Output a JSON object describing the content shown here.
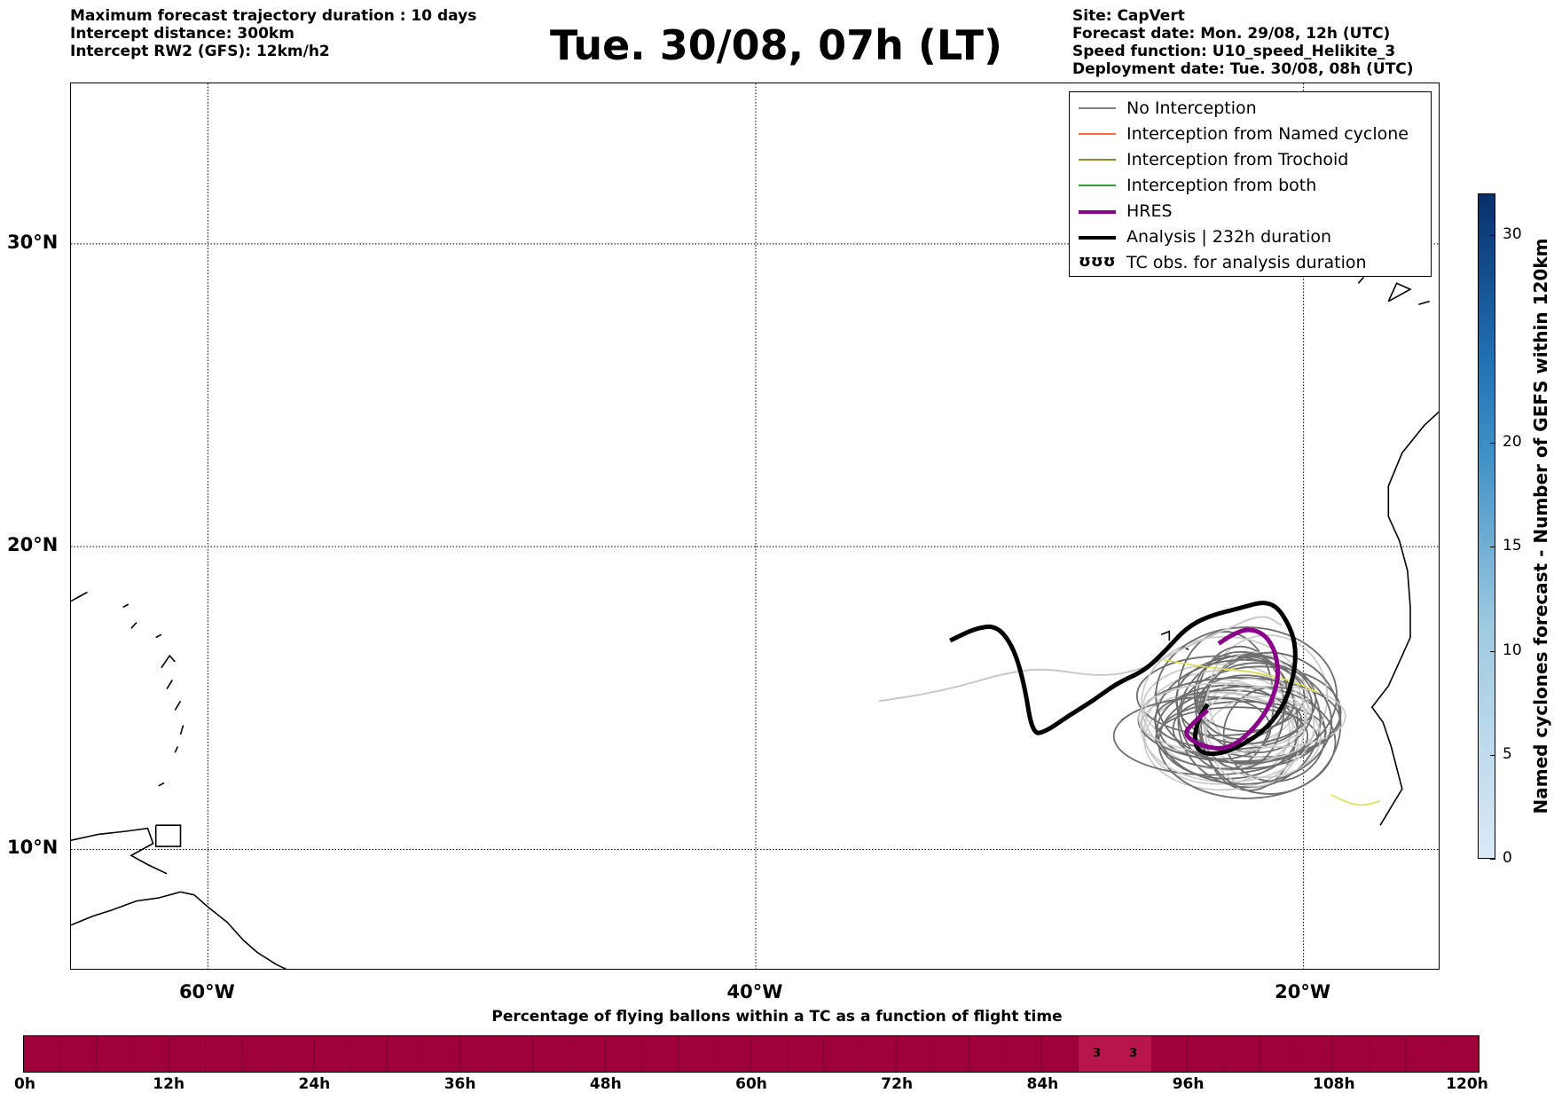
{
  "header_left": [
    "Maximum forecast trajectory duration : 10 days",
    "Intercept distance: 300km",
    "Intercept RW2 (GFS):  12km/h2"
  ],
  "title": "Tue. 30/08, 07h (LT)",
  "header_right": [
    "Site: CapVert",
    "Forecast date: Mon. 29/08, 12h (UTC)",
    "Speed function: U10_speed_Helikite_3",
    "Deployment date: Tue. 30/08, 08h (UTC)"
  ],
  "map": {
    "lon_range": [
      -65,
      15
    ],
    "lat_range": [
      5,
      35
    ],
    "lat_labels": [
      {
        "lat": 30,
        "label": "30°N"
      },
      {
        "lat": 20,
        "label": "20°N"
      },
      {
        "lat": 10,
        "label": "10°N"
      }
    ],
    "lon_labels": [
      {
        "lon": -60,
        "label": "60°W"
      },
      {
        "lon": -40,
        "label": "40°W"
      },
      {
        "lon": -20,
        "label": "20°W"
      }
    ]
  },
  "legend": [
    {
      "label": "No Interception",
      "color": "#808080",
      "style": "line"
    },
    {
      "label": "Interception from Named cyclone",
      "color": "#ff6a3d",
      "style": "line"
    },
    {
      "label": "Interception from Trochoid",
      "color": "#8b8b2b",
      "style": "line"
    },
    {
      "label": "Interception from both",
      "color": "#2ca02c",
      "style": "line"
    },
    {
      "label": "HRES",
      "color": "#8b008b",
      "style": "thick"
    },
    {
      "label": "Analysis | 232h duration",
      "color": "#000000",
      "style": "thick"
    },
    {
      "label": "TC obs. for analysis duration",
      "color": "#000000",
      "style": "symbol",
      "symbol": "ʊʊʊ"
    }
  ],
  "colorbar": {
    "label": "Named cyclones forecast - Number of GEFS within 120km",
    "min": 0,
    "max": 32,
    "ticks": [
      0,
      5,
      10,
      15,
      20,
      30
    ],
    "color_low": "#dbe9f6",
    "color_high": "#08306b"
  },
  "timeline": {
    "title": "Percentage of flying ballons within a TC as a function of flight time",
    "ticks": [
      "0h",
      "12h",
      "24h",
      "36h",
      "48h",
      "60h",
      "72h",
      "84h",
      "96h",
      "108h",
      "120h"
    ],
    "base_color": "#a0003a",
    "highlights": [
      {
        "hour_start": 87,
        "hour_end": 90,
        "label": "3"
      },
      {
        "hour_start": 90,
        "hour_end": 93,
        "label": "3"
      }
    ]
  },
  "chart_data": {
    "type": "map",
    "title": "Tue. 30/08, 07h (LT)",
    "analysis_track": [
      [
        -32.9,
        16.9
      ],
      [
        -32.0,
        17.3
      ],
      [
        -31.2,
        17.4
      ],
      [
        -30.6,
        16.7
      ],
      [
        -30.2,
        15.5
      ],
      [
        -29.9,
        13.8
      ],
      [
        -29.4,
        13.9
      ],
      [
        -28.6,
        14.4
      ],
      [
        -27.7,
        14.9
      ],
      [
        -26.8,
        15.5
      ],
      [
        -25.8,
        15.9
      ],
      [
        -25.0,
        16.6
      ],
      [
        -24.3,
        17.3
      ],
      [
        -23.5,
        17.7
      ],
      [
        -22.2,
        18.0
      ],
      [
        -21.4,
        18.2
      ],
      [
        -20.8,
        17.9
      ],
      [
        -20.2,
        16.7
      ],
      [
        -20.5,
        15.1
      ],
      [
        -21.3,
        14.0
      ],
      [
        -22.5,
        13.3
      ],
      [
        -23.5,
        13.1
      ],
      [
        -24.0,
        13.4
      ],
      [
        -23.9,
        14.2
      ],
      [
        -23.5,
        14.8
      ]
    ],
    "hres_track": [
      [
        -23.1,
        16.8
      ],
      [
        -22.6,
        17.1
      ],
      [
        -22.0,
        17.3
      ],
      [
        -21.4,
        17.1
      ],
      [
        -21.0,
        16.5
      ],
      [
        -20.9,
        15.6
      ],
      [
        -21.3,
        14.6
      ],
      [
        -22.0,
        13.8
      ],
      [
        -22.8,
        13.3
      ],
      [
        -23.7,
        13.4
      ],
      [
        -24.4,
        13.8
      ],
      [
        -24.0,
        14.2
      ],
      [
        -23.5,
        14.6
      ]
    ],
    "light_track": [
      [
        -35.5,
        14.9
      ],
      [
        -34.0,
        15.1
      ],
      [
        -32.5,
        15.4
      ],
      [
        -31.0,
        15.8
      ],
      [
        -29.5,
        16.0
      ],
      [
        -27.5,
        15.7
      ],
      [
        -26.0,
        15.9
      ],
      [
        -24.5,
        16.6
      ],
      [
        -23.0,
        17.2
      ],
      [
        -21.5,
        17.8
      ],
      [
        -20.8,
        17.4
      ]
    ],
    "ensemble_center": [
      -22.2,
      14.3
    ],
    "islands_cv": [
      [
        -25.0,
        17.0
      ],
      [
        -24.3,
        16.6
      ],
      [
        -23.1,
        15.2
      ],
      [
        -23.7,
        15.0
      ]
    ]
  }
}
